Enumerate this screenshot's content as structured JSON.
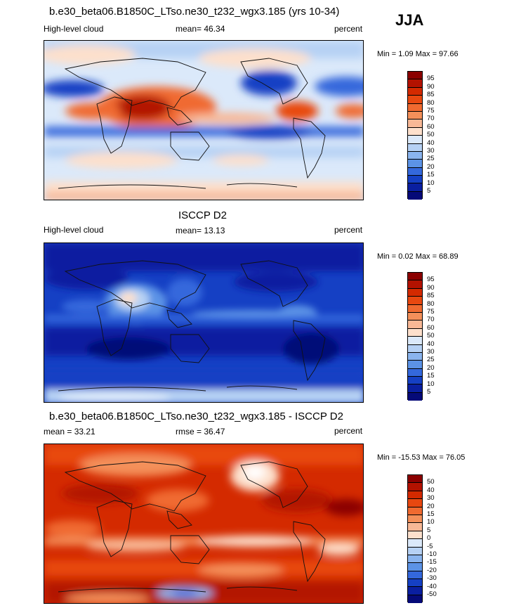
{
  "season": "JJA",
  "panels": [
    {
      "id": "model",
      "title": "b.e30_beta06.B1850C_LTso.ne30_t232_wgx3.185 (yrs 10-34)",
      "left_label": "High-level cloud",
      "center_label": "mean=  46.34",
      "right_label": "percent",
      "minmax": "Min =   1.09 Max =  97.66",
      "colorbar": {
        "labels": [
          "95",
          "90",
          "85",
          "80",
          "75",
          "70",
          "60",
          "50",
          "40",
          "30",
          "25",
          "20",
          "15",
          "10",
          "5"
        ],
        "colors": [
          "#8b0000",
          "#b31200",
          "#d42a00",
          "#e84810",
          "#f06a30",
          "#f4905a",
          "#f8b896",
          "#fde0cc",
          "#dbe9fa",
          "#b6d1f4",
          "#8ab4ee",
          "#5c93e6",
          "#3468dc",
          "#1540c4",
          "#0a1fa0",
          "#050a78"
        ]
      }
    },
    {
      "id": "obs",
      "title": "ISCCP D2",
      "left_label": "High-level cloud",
      "center_label": "mean=  13.13",
      "right_label": "percent",
      "minmax": "Min =   0.02 Max =  68.89",
      "colorbar": {
        "labels": [
          "95",
          "90",
          "85",
          "80",
          "75",
          "70",
          "60",
          "50",
          "40",
          "30",
          "25",
          "20",
          "15",
          "10",
          "5"
        ],
        "colors": [
          "#8b0000",
          "#b31200",
          "#d42a00",
          "#e84810",
          "#f06a30",
          "#f4905a",
          "#f8b896",
          "#fde0cc",
          "#dbe9fa",
          "#b6d1f4",
          "#8ab4ee",
          "#5c93e6",
          "#3468dc",
          "#1540c4",
          "#0a1fa0",
          "#050a78"
        ]
      }
    },
    {
      "id": "diff",
      "title": "b.e30_beta06.B1850C_LTso.ne30_t232_wgx3.185 - ISCCP D2",
      "left_label": "mean =  33.21",
      "center_label": "rmse =  36.47",
      "right_label": "percent",
      "minmax": "Min = -15.53 Max =  76.05",
      "colorbar": {
        "labels": [
          "50",
          "40",
          "30",
          "20",
          "15",
          "10",
          "5",
          "0",
          "-5",
          "-10",
          "-15",
          "-20",
          "-30",
          "-40",
          "-50"
        ],
        "colors": [
          "#8b0000",
          "#b31200",
          "#d42a00",
          "#e84810",
          "#f06a30",
          "#f4905a",
          "#f8b896",
          "#fde0cc",
          "#dbe9fa",
          "#b6d1f4",
          "#8ab4ee",
          "#5c93e6",
          "#3468dc",
          "#1540c4",
          "#0a1fa0",
          "#050a78"
        ]
      }
    }
  ]
}
